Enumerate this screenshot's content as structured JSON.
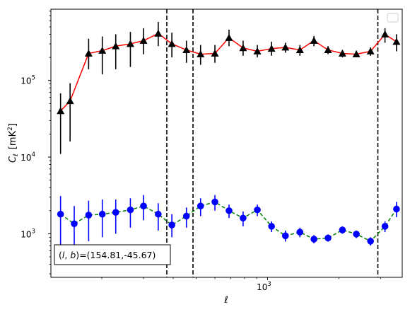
{
  "chart_data": {
    "type": "scatter",
    "xscale": "log",
    "yscale": "log",
    "xlim": [
      122,
      3700
    ],
    "ylim": [
      270,
      850000
    ],
    "xlabel": "ℓ",
    "ylabel": "C",
    "ylabel_sub": "ℓ",
    "ylabel_unit": "[mK",
    "ylabel_unit_sup": "2",
    "ylabel_unit_end": "]",
    "xticks": [
      {
        "value": 1000,
        "base": "10",
        "exp": "3"
      }
    ],
    "yticks": [
      {
        "value": 1000,
        "base": "10",
        "exp": "3"
      },
      {
        "value": 10000,
        "base": "10",
        "exp": "4"
      },
      {
        "value": 100000,
        "base": "10",
        "exp": "5"
      }
    ],
    "vlines": [
      376,
      485,
      2920
    ],
    "annotation": {
      "prefix": "(",
      "l": "l",
      "sep": ", ",
      "b": "b",
      "suffix": ")=(154.81,-45.67)"
    },
    "legend": "top-right",
    "series": [
      {
        "marker": "triangle",
        "marker_color": "#000000",
        "line_color": "#ff0000",
        "line_style": "solid",
        "error_color": "#000000",
        "points": [
          {
            "x": 134,
            "y": 40000,
            "lo": 11000,
            "hi": 68000
          },
          {
            "x": 147,
            "y": 54000,
            "lo": 16000,
            "hi": 92000
          },
          {
            "x": 176,
            "y": 225000,
            "lo": 140000,
            "hi": 350000
          },
          {
            "x": 201,
            "y": 245000,
            "lo": 120000,
            "hi": 375000
          },
          {
            "x": 229,
            "y": 280000,
            "lo": 140000,
            "hi": 400000
          },
          {
            "x": 264,
            "y": 300000,
            "lo": 150000,
            "hi": 430000
          },
          {
            "x": 300,
            "y": 330000,
            "lo": 220000,
            "hi": 480000
          },
          {
            "x": 346,
            "y": 410000,
            "lo": 280000,
            "hi": 580000
          },
          {
            "x": 395,
            "y": 300000,
            "lo": 200000,
            "hi": 420000
          },
          {
            "x": 455,
            "y": 250000,
            "lo": 170000,
            "hi": 330000
          },
          {
            "x": 522,
            "y": 220000,
            "lo": 160000,
            "hi": 290000
          },
          {
            "x": 600,
            "y": 225000,
            "lo": 170000,
            "hi": 290000
          },
          {
            "x": 688,
            "y": 360000,
            "lo": 280000,
            "hi": 460000
          },
          {
            "x": 789,
            "y": 265000,
            "lo": 210000,
            "hi": 330000
          },
          {
            "x": 906,
            "y": 240000,
            "lo": 200000,
            "hi": 290000
          },
          {
            "x": 1040,
            "y": 260000,
            "lo": 210000,
            "hi": 320000
          },
          {
            "x": 1190,
            "y": 270000,
            "lo": 230000,
            "hi": 310000
          },
          {
            "x": 1370,
            "y": 250000,
            "lo": 210000,
            "hi": 290000
          },
          {
            "x": 1570,
            "y": 330000,
            "lo": 280000,
            "hi": 380000
          },
          {
            "x": 1800,
            "y": 250000,
            "lo": 220000,
            "hi": 280000
          },
          {
            "x": 2070,
            "y": 225000,
            "lo": 200000,
            "hi": 250000
          },
          {
            "x": 2370,
            "y": 220000,
            "lo": 200000,
            "hi": 245000
          },
          {
            "x": 2720,
            "y": 240000,
            "lo": 210000,
            "hi": 270000
          },
          {
            "x": 3130,
            "y": 400000,
            "lo": 310000,
            "hi": 480000
          },
          {
            "x": 3500,
            "y": 320000,
            "lo": 240000,
            "hi": 400000
          }
        ]
      },
      {
        "marker": "circle",
        "marker_color": "#0000ff",
        "line_color": "#008000",
        "line_style": "dashed",
        "error_color": "#0000ff",
        "points": [
          {
            "x": 134,
            "y": 1800,
            "lo": 700,
            "hi": 3100
          },
          {
            "x": 153,
            "y": 1350,
            "lo": 500,
            "hi": 2300
          },
          {
            "x": 176,
            "y": 1750,
            "lo": 800,
            "hi": 2700
          },
          {
            "x": 201,
            "y": 1800,
            "lo": 900,
            "hi": 2800
          },
          {
            "x": 229,
            "y": 1900,
            "lo": 1000,
            "hi": 2800
          },
          {
            "x": 264,
            "y": 2050,
            "lo": 1200,
            "hi": 2900
          },
          {
            "x": 300,
            "y": 2300,
            "lo": 1500,
            "hi": 3200
          },
          {
            "x": 346,
            "y": 1800,
            "lo": 1100,
            "hi": 2500
          },
          {
            "x": 395,
            "y": 1300,
            "lo": 900,
            "hi": 1800
          },
          {
            "x": 455,
            "y": 1700,
            "lo": 1200,
            "hi": 2200
          },
          {
            "x": 522,
            "y": 2300,
            "lo": 1700,
            "hi": 2900
          },
          {
            "x": 600,
            "y": 2600,
            "lo": 2000,
            "hi": 3200
          },
          {
            "x": 688,
            "y": 2000,
            "lo": 1600,
            "hi": 2400
          },
          {
            "x": 789,
            "y": 1600,
            "lo": 1250,
            "hi": 1950
          },
          {
            "x": 906,
            "y": 2050,
            "lo": 1700,
            "hi": 2400
          },
          {
            "x": 1040,
            "y": 1250,
            "lo": 1050,
            "hi": 1450
          },
          {
            "x": 1190,
            "y": 940,
            "lo": 790,
            "hi": 1100
          },
          {
            "x": 1370,
            "y": 1050,
            "lo": 900,
            "hi": 1200
          },
          {
            "x": 1570,
            "y": 850,
            "lo": 750,
            "hi": 960
          },
          {
            "x": 1800,
            "y": 880,
            "lo": 790,
            "hi": 980
          },
          {
            "x": 2070,
            "y": 1120,
            "lo": 1000,
            "hi": 1250
          },
          {
            "x": 2370,
            "y": 990,
            "lo": 880,
            "hi": 1100
          },
          {
            "x": 2720,
            "y": 800,
            "lo": 700,
            "hi": 900
          },
          {
            "x": 3130,
            "y": 1250,
            "lo": 1050,
            "hi": 1450
          },
          {
            "x": 3500,
            "y": 2100,
            "lo": 1650,
            "hi": 2600
          }
        ]
      }
    ]
  }
}
